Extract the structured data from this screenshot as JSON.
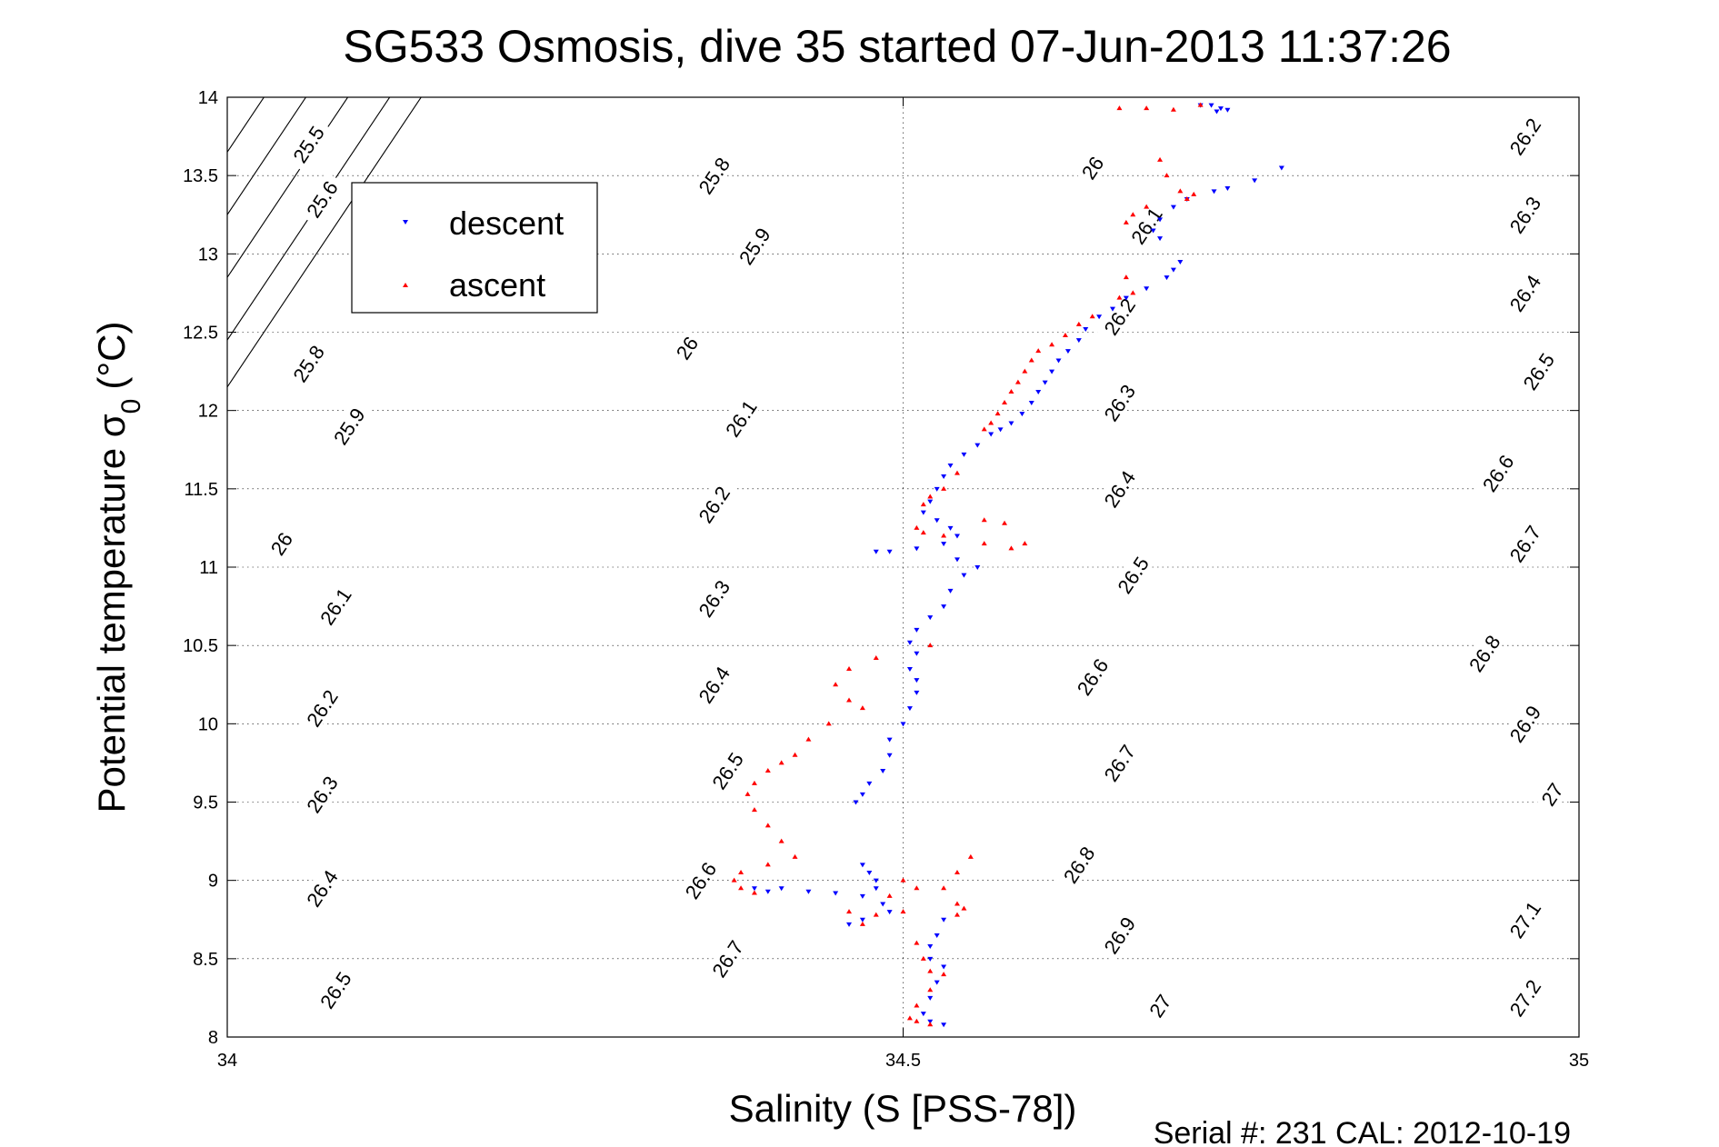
{
  "chart_data": {
    "type": "scatter",
    "title": "SG533 Osmosis, dive 35 started 07-Jun-2013 11:37:26",
    "xlabel": "Salinity (S [PSS-78])",
    "ylabel": "Potential temperature σ",
    "ylabel_sub": "0",
    "ylabel_unit": "(°C)",
    "xlim": [
      34,
      35
    ],
    "ylim": [
      8,
      14
    ],
    "xticks": [
      34,
      34.5,
      35
    ],
    "xtick_labels": [
      "34",
      "34.5",
      "35"
    ],
    "yticks": [
      8,
      8.5,
      9,
      9.5,
      10,
      10.5,
      11,
      11.5,
      12,
      12.5,
      13,
      13.5,
      14
    ],
    "ytick_labels": [
      "8",
      "8.5",
      "9",
      "9.5",
      "10",
      "10.5",
      "11",
      "11.5",
      "12",
      "12.5",
      "13",
      "13.5",
      "14"
    ],
    "grid": true,
    "legend_position": "top-left",
    "footer": "Serial #: 231  CAL: 2012-10-19",
    "colors": {
      "descent": "#0000ff",
      "ascent": "#ff0000",
      "contour": "#000000"
    },
    "contours": [
      {
        "label": "25.5",
        "at": [
          [
            34.06,
            13.7
          ]
        ]
      },
      {
        "label": "25.6",
        "at": [
          [
            34.07,
            13.35
          ]
        ]
      },
      {
        "label": "25.8",
        "at": [
          [
            34.06,
            12.3
          ],
          [
            34.36,
            13.5
          ]
        ]
      },
      {
        "label": "25.9",
        "at": [
          [
            34.09,
            11.9
          ],
          [
            34.39,
            13.05
          ]
        ]
      },
      {
        "label": "26",
        "at": [
          [
            34.04,
            11.15
          ],
          [
            34.34,
            12.4
          ],
          [
            34.64,
            13.55
          ]
        ]
      },
      {
        "label": "26.1",
        "at": [
          [
            34.08,
            10.75
          ],
          [
            34.38,
            11.95
          ],
          [
            34.68,
            13.18
          ]
        ]
      },
      {
        "label": "26.2",
        "at": [
          [
            34.07,
            10.1
          ],
          [
            34.36,
            11.4
          ],
          [
            34.66,
            12.6
          ],
          [
            34.96,
            13.75
          ]
        ]
      },
      {
        "label": "26.3",
        "at": [
          [
            34.07,
            9.55
          ],
          [
            34.36,
            10.8
          ],
          [
            34.66,
            12.05
          ],
          [
            34.96,
            13.25
          ]
        ]
      },
      {
        "label": "26.4",
        "at": [
          [
            34.07,
            8.95
          ],
          [
            34.36,
            10.25
          ],
          [
            34.66,
            11.5
          ],
          [
            34.96,
            12.75
          ]
        ]
      },
      {
        "label": "26.5",
        "at": [
          [
            34.08,
            8.3
          ],
          [
            34.37,
            9.7
          ],
          [
            34.67,
            10.95
          ],
          [
            34.97,
            12.25
          ]
        ]
      },
      {
        "label": "26.6",
        "at": [
          [
            34.35,
            9.0
          ],
          [
            34.64,
            10.3
          ],
          [
            34.94,
            11.6
          ]
        ]
      },
      {
        "label": "26.7",
        "at": [
          [
            34.37,
            8.5
          ],
          [
            34.66,
            9.75
          ],
          [
            34.96,
            11.15
          ]
        ]
      },
      {
        "label": "26.8",
        "at": [
          [
            34.63,
            9.1
          ],
          [
            34.93,
            10.45
          ]
        ]
      },
      {
        "label": "26.9",
        "at": [
          [
            34.66,
            8.65
          ],
          [
            34.96,
            10.0
          ]
        ]
      },
      {
        "label": "27",
        "at": [
          [
            34.69,
            8.2
          ],
          [
            34.98,
            9.55
          ]
        ]
      },
      {
        "label": "27.1",
        "at": [
          [
            34.96,
            8.75
          ]
        ]
      },
      {
        "label": "27.2",
        "at": [
          [
            34.96,
            8.25
          ]
        ]
      }
    ],
    "contour_slope": 12.9,
    "contour_intercepts": [
      -426.45,
      -426.15,
      -425.75,
      -425.35,
      -424.95,
      -424.55,
      -424.15,
      -423.75,
      -423.35,
      -422.95,
      -422.55,
      -422.15,
      -421.75,
      -421.35,
      -420.95,
      -420.55,
      -420.15,
      -419.75
    ],
    "series": [
      {
        "name": "descent",
        "marker": "triangle-down",
        "points": [
          [
            34.728,
            13.95
          ],
          [
            34.735,
            13.93
          ],
          [
            34.72,
            13.95
          ],
          [
            34.74,
            13.92
          ],
          [
            34.732,
            13.91
          ],
          [
            34.78,
            13.55
          ],
          [
            34.76,
            13.47
          ],
          [
            34.74,
            13.42
          ],
          [
            34.73,
            13.4
          ],
          [
            34.71,
            13.35
          ],
          [
            34.7,
            13.3
          ],
          [
            34.69,
            13.22
          ],
          [
            34.685,
            13.15
          ],
          [
            34.69,
            13.1
          ],
          [
            34.705,
            12.95
          ],
          [
            34.7,
            12.9
          ],
          [
            34.695,
            12.85
          ],
          [
            34.68,
            12.78
          ],
          [
            34.665,
            12.72
          ],
          [
            34.655,
            12.65
          ],
          [
            34.645,
            12.6
          ],
          [
            34.635,
            12.52
          ],
          [
            34.63,
            12.45
          ],
          [
            34.622,
            12.38
          ],
          [
            34.615,
            12.32
          ],
          [
            34.61,
            12.25
          ],
          [
            34.605,
            12.18
          ],
          [
            34.6,
            12.12
          ],
          [
            34.595,
            12.05
          ],
          [
            34.588,
            11.98
          ],
          [
            34.58,
            11.92
          ],
          [
            34.572,
            11.88
          ],
          [
            34.565,
            11.85
          ],
          [
            34.555,
            11.78
          ],
          [
            34.545,
            11.72
          ],
          [
            34.535,
            11.65
          ],
          [
            34.53,
            11.58
          ],
          [
            34.525,
            11.5
          ],
          [
            34.52,
            11.42
          ],
          [
            34.515,
            11.35
          ],
          [
            34.525,
            11.3
          ],
          [
            34.535,
            11.25
          ],
          [
            34.54,
            11.2
          ],
          [
            34.53,
            11.15
          ],
          [
            34.51,
            11.12
          ],
          [
            34.49,
            11.1
          ],
          [
            34.48,
            11.1
          ],
          [
            34.54,
            11.05
          ],
          [
            34.555,
            11.0
          ],
          [
            34.545,
            10.95
          ],
          [
            34.535,
            10.85
          ],
          [
            34.53,
            10.75
          ],
          [
            34.52,
            10.68
          ],
          [
            34.51,
            10.6
          ],
          [
            34.505,
            10.52
          ],
          [
            34.51,
            10.45
          ],
          [
            34.505,
            10.35
          ],
          [
            34.51,
            10.28
          ],
          [
            34.51,
            10.2
          ],
          [
            34.505,
            10.1
          ],
          [
            34.5,
            10.0
          ],
          [
            34.49,
            9.9
          ],
          [
            34.49,
            9.8
          ],
          [
            34.485,
            9.7
          ],
          [
            34.475,
            9.62
          ],
          [
            34.47,
            9.55
          ],
          [
            34.465,
            9.5
          ],
          [
            34.47,
            9.1
          ],
          [
            34.475,
            9.05
          ],
          [
            34.48,
            9.0
          ],
          [
            34.48,
            8.95
          ],
          [
            34.47,
            8.9
          ],
          [
            34.45,
            8.92
          ],
          [
            34.43,
            8.93
          ],
          [
            34.41,
            8.95
          ],
          [
            34.4,
            8.93
          ],
          [
            34.39,
            8.95
          ],
          [
            34.485,
            8.85
          ],
          [
            34.49,
            8.8
          ],
          [
            34.47,
            8.75
          ],
          [
            34.46,
            8.72
          ],
          [
            34.53,
            8.75
          ],
          [
            34.525,
            8.65
          ],
          [
            34.52,
            8.58
          ],
          [
            34.52,
            8.5
          ],
          [
            34.53,
            8.45
          ],
          [
            34.525,
            8.35
          ],
          [
            34.52,
            8.25
          ],
          [
            34.515,
            8.15
          ],
          [
            34.52,
            8.1
          ],
          [
            34.53,
            8.08
          ]
        ]
      },
      {
        "name": "ascent",
        "marker": "triangle-up",
        "points": [
          [
            34.66,
            13.93
          ],
          [
            34.7,
            13.92
          ],
          [
            34.72,
            13.95
          ],
          [
            34.68,
            13.93
          ],
          [
            34.69,
            13.6
          ],
          [
            34.695,
            13.5
          ],
          [
            34.705,
            13.4
          ],
          [
            34.71,
            13.35
          ],
          [
            34.715,
            13.38
          ],
          [
            34.68,
            13.3
          ],
          [
            34.67,
            13.25
          ],
          [
            34.665,
            13.2
          ],
          [
            34.665,
            12.85
          ],
          [
            34.67,
            12.75
          ],
          [
            34.66,
            12.72
          ],
          [
            34.64,
            12.6
          ],
          [
            34.63,
            12.55
          ],
          [
            34.62,
            12.48
          ],
          [
            34.61,
            12.42
          ],
          [
            34.6,
            12.38
          ],
          [
            34.595,
            12.32
          ],
          [
            34.59,
            12.25
          ],
          [
            34.585,
            12.18
          ],
          [
            34.58,
            12.12
          ],
          [
            34.575,
            12.05
          ],
          [
            34.57,
            11.98
          ],
          [
            34.565,
            11.92
          ],
          [
            34.56,
            11.88
          ],
          [
            34.54,
            11.6
          ],
          [
            34.53,
            11.5
          ],
          [
            34.52,
            11.45
          ],
          [
            34.515,
            11.4
          ],
          [
            34.51,
            11.25
          ],
          [
            34.515,
            11.22
          ],
          [
            34.53,
            11.2
          ],
          [
            34.56,
            11.15
          ],
          [
            34.58,
            11.12
          ],
          [
            34.59,
            11.15
          ],
          [
            34.575,
            11.28
          ],
          [
            34.56,
            11.3
          ],
          [
            34.52,
            10.5
          ],
          [
            34.48,
            10.42
          ],
          [
            34.46,
            10.35
          ],
          [
            34.45,
            10.25
          ],
          [
            34.46,
            10.15
          ],
          [
            34.47,
            10.1
          ],
          [
            34.445,
            10.0
          ],
          [
            34.43,
            9.9
          ],
          [
            34.42,
            9.8
          ],
          [
            34.41,
            9.75
          ],
          [
            34.4,
            9.7
          ],
          [
            34.39,
            9.62
          ],
          [
            34.385,
            9.55
          ],
          [
            34.39,
            9.45
          ],
          [
            34.4,
            9.35
          ],
          [
            34.41,
            9.25
          ],
          [
            34.42,
            9.15
          ],
          [
            34.4,
            9.1
          ],
          [
            34.38,
            9.05
          ],
          [
            34.375,
            9.0
          ],
          [
            34.38,
            8.95
          ],
          [
            34.39,
            8.92
          ],
          [
            34.5,
            9.0
          ],
          [
            34.51,
            8.95
          ],
          [
            34.49,
            8.9
          ],
          [
            34.5,
            8.8
          ],
          [
            34.48,
            8.78
          ],
          [
            34.46,
            8.8
          ],
          [
            34.47,
            8.72
          ],
          [
            34.54,
            8.85
          ],
          [
            34.545,
            8.82
          ],
          [
            34.54,
            8.78
          ],
          [
            34.55,
            9.15
          ],
          [
            34.54,
            9.05
          ],
          [
            34.53,
            8.95
          ],
          [
            34.51,
            8.6
          ],
          [
            34.515,
            8.5
          ],
          [
            34.52,
            8.42
          ],
          [
            34.53,
            8.4
          ],
          [
            34.52,
            8.3
          ],
          [
            34.51,
            8.2
          ],
          [
            34.505,
            8.12
          ],
          [
            34.51,
            8.1
          ],
          [
            34.52,
            8.08
          ]
        ]
      }
    ]
  }
}
